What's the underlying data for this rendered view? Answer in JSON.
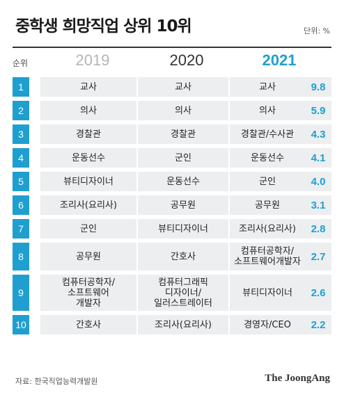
{
  "title": "중학생 희망직업 상위 10위",
  "unit": "단위: %",
  "header": {
    "rank": "순위",
    "years": [
      "2019",
      "2020",
      "2021"
    ]
  },
  "chart_data": {
    "type": "table",
    "title": "중학생 희망직업 상위 10위",
    "unit": "단위: %",
    "columns": [
      "순위",
      "2019",
      "2020",
      "2021",
      "2021 %"
    ],
    "rows": [
      {
        "rank": "1",
        "y2019": "교사",
        "y2020": "교사",
        "y2021": "교사",
        "pct": "9.8"
      },
      {
        "rank": "2",
        "y2019": "의사",
        "y2020": "의사",
        "y2021": "의사",
        "pct": "5.9"
      },
      {
        "rank": "3",
        "y2019": "경찰관",
        "y2020": "경찰관",
        "y2021": "경찰관/수사관",
        "pct": "4.3"
      },
      {
        "rank": "4",
        "y2019": "운동선수",
        "y2020": "군인",
        "y2021": "운동선수",
        "pct": "4.1"
      },
      {
        "rank": "5",
        "y2019": "뷰티디자이너",
        "y2020": "운동선수",
        "y2021": "군인",
        "pct": "4.0"
      },
      {
        "rank": "6",
        "y2019": "조리사(요리사)",
        "y2020": "공무원",
        "y2021": "공무원",
        "pct": "3.1"
      },
      {
        "rank": "7",
        "y2019": "군인",
        "y2020": "뷰티디자이너",
        "y2021": "조리사(요리사)",
        "pct": "2.8"
      },
      {
        "rank": "8",
        "y2019": "공무원",
        "y2020": "간호사",
        "y2021": "컴퓨터공학자/\n소프트웨어개발자",
        "pct": "2.7"
      },
      {
        "rank": "9",
        "y2019": "컴퓨터공학자/\n소프트웨어\n개발자",
        "y2020": "컴퓨터그래픽\n디자이너/\n일러스트레이터",
        "y2021": "뷰티디자이너",
        "pct": "2.6"
      },
      {
        "rank": "10",
        "y2019": "간호사",
        "y2020": "조리사(요리사)",
        "y2021": "경영자/CEO",
        "pct": "2.2"
      }
    ]
  },
  "source": "자료: 한국직업능력개발원",
  "brand": "The JoongAng",
  "colors": {
    "accent": "#1e9fd0",
    "cell_bg": "#eceeef",
    "muted_year": "#b5b5b5"
  }
}
